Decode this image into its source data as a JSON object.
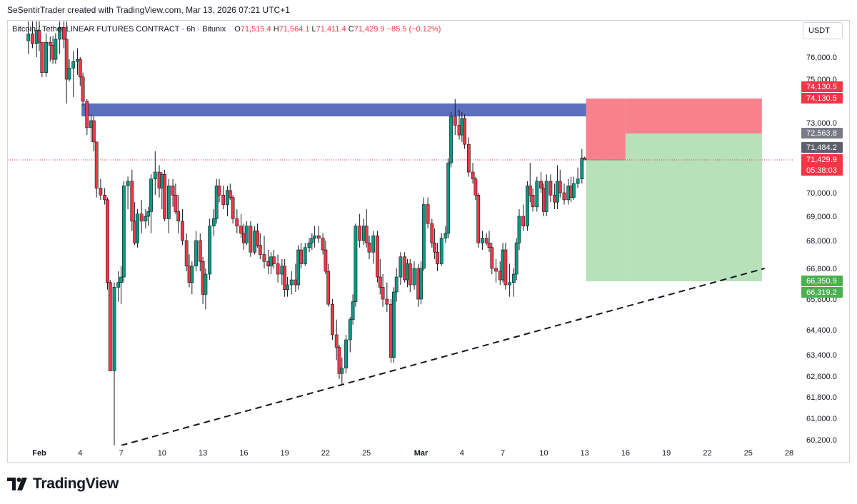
{
  "caption": "SeSentirTrader created with TradingView.com, Mar 13, 2026 07:21 UTC+1",
  "header": {
    "symbol": "Bitcoin / Tether LINEAR FUTURES CONTRACT · 6h · Bitunix",
    "open_label": "O",
    "open": "71,515.4",
    "high_label": "H",
    "high": "71,564.1",
    "low_label": "L",
    "low": "71,411.4",
    "close_label": "C",
    "close": "71,429.9",
    "change": "−85.5 (−0.12%)"
  },
  "currency": "USDT",
  "brand": {
    "name": "TradingView",
    "icon": "tradingview-logo-icon"
  },
  "colors": {
    "up": "#089981",
    "down": "#f23645",
    "resistance_zone": "#5b6fbe",
    "stop_zone": "#f7828e",
    "target_zone": "#b7e1b9",
    "trendline": "#131722",
    "price_line": "#f23645"
  },
  "chart_data": {
    "type": "candlestick",
    "interval": "6h",
    "ylim": [
      60000,
      77200
    ],
    "y_ticks": [
      {
        "label": "76,000.0",
        "value": 76000
      },
      {
        "label": "75,000.0",
        "value": 75000
      },
      {
        "label": "73,000.0",
        "value": 73000
      },
      {
        "label": "70,000.0",
        "value": 70000
      },
      {
        "label": "69,000.0",
        "value": 69000
      },
      {
        "label": "68,000.0",
        "value": 68000
      },
      {
        "label": "66,800.0",
        "value": 66800
      },
      {
        "label": "65,600.0",
        "value": 65600
      },
      {
        "label": "64,400.0",
        "value": 64400
      },
      {
        "label": "63,400.0",
        "value": 63400
      },
      {
        "label": "62,600.0",
        "value": 62600
      },
      {
        "label": "61,800.0",
        "value": 61800
      },
      {
        "label": "61,000.0",
        "value": 61000
      },
      {
        "label": "60,200.0",
        "value": 60200
      }
    ],
    "x_ticks": [
      {
        "label": "Feb",
        "day": 1,
        "bold": true
      },
      {
        "label": "4",
        "day": 4
      },
      {
        "label": "7",
        "day": 7
      },
      {
        "label": "10",
        "day": 10
      },
      {
        "label": "13",
        "day": 13
      },
      {
        "label": "16",
        "day": 16
      },
      {
        "label": "19",
        "day": 19
      },
      {
        "label": "22",
        "day": 22
      },
      {
        "label": "25",
        "day": 25
      },
      {
        "label": "Mar",
        "day": 29,
        "bold": true
      },
      {
        "label": "4",
        "day": 32
      },
      {
        "label": "7",
        "day": 35
      },
      {
        "label": "10",
        "day": 38
      },
      {
        "label": "13",
        "day": 41
      },
      {
        "label": "16",
        "day": 44
      },
      {
        "label": "19",
        "day": 47
      },
      {
        "label": "22",
        "day": 50
      },
      {
        "label": "25",
        "day": 53
      },
      {
        "label": "28",
        "day": 56
      }
    ],
    "price_tags": [
      {
        "label": "74,130.5",
        "value": 74130.5,
        "color": "#f23645"
      },
      {
        "label": "74,130.5",
        "value": 74130.5,
        "color": "#f23645",
        "offset": 1
      },
      {
        "label": "72,563.8",
        "value": 72563.8,
        "color": "#787b86"
      },
      {
        "label": "71,484.2",
        "value": 71484.2,
        "color": "#5d606b"
      },
      {
        "label": "71,429.9",
        "value": 71429.9,
        "color": "#f23645",
        "sub": "05:38:03"
      },
      {
        "label": "66,350.9",
        "value": 66350.9,
        "color": "#4caf50"
      },
      {
        "label": "66,319.2",
        "value": 66319.2,
        "color": "#4caf50",
        "offset": 1
      }
    ],
    "resistance_zone": {
      "day_start": 4.1,
      "day_end": 43.3,
      "price_low": 73300,
      "price_high": 73900
    },
    "position": {
      "entry_day": 41.1,
      "split_day": 44.0,
      "end_day": 54.0,
      "entry_price": 71429.9,
      "stop_price": 74130.5,
      "mid_price": 72563.8,
      "target_price": 66350.9
    },
    "trendline": {
      "day_start": 7.0,
      "price_start": 60000,
      "day_end": 54.2,
      "price_end": 66800
    },
    "candles_description": "Approximate 6h candles read off the chart",
    "candles": [
      [
        0.2,
        76550,
        77200,
        76100,
        76780
      ],
      [
        0.5,
        76780,
        77200,
        76300,
        76450
      ],
      [
        0.8,
        76450,
        77200,
        76000,
        76900
      ],
      [
        1.0,
        76900,
        77200,
        76200,
        76500
      ],
      [
        1.2,
        76500,
        76500,
        75100,
        75300
      ],
      [
        1.5,
        75300,
        76800,
        75100,
        76500
      ],
      [
        1.8,
        76500,
        76700,
        75800,
        76400
      ],
      [
        2.0,
        76400,
        76700,
        75700,
        75900
      ],
      [
        2.2,
        75900,
        76800,
        75700,
        76600
      ],
      [
        2.5,
        76600,
        77200,
        76100,
        77000
      ],
      [
        2.8,
        77000,
        77200,
        76300,
        76600
      ],
      [
        3.0,
        76600,
        77200,
        73900,
        75000
      ],
      [
        3.2,
        75000,
        75900,
        74900,
        75500
      ],
      [
        3.5,
        75500,
        76200,
        74200,
        75800
      ],
      [
        3.8,
        75800,
        76300,
        75200,
        75900
      ],
      [
        4.0,
        75900,
        76000,
        74700,
        75100
      ],
      [
        4.2,
        75100,
        75300,
        73800,
        74000
      ],
      [
        4.5,
        74000,
        74100,
        72500,
        72800
      ],
      [
        4.8,
        72800,
        73400,
        72200,
        73100
      ],
      [
        5.0,
        73100,
        73300,
        71800,
        72200
      ],
      [
        5.2,
        72200,
        72200,
        69800,
        70200
      ],
      [
        5.5,
        70200,
        70600,
        69700,
        69900
      ],
      [
        5.8,
        69900,
        70200,
        69500,
        69700
      ],
      [
        6.0,
        69700,
        69800,
        66000,
        66300
      ],
      [
        6.2,
        66300,
        66400,
        62800,
        62800
      ],
      [
        6.5,
        62800,
        66300,
        60000,
        66100
      ],
      [
        6.8,
        66100,
        66700,
        65500,
        66300
      ],
      [
        7.0,
        66300,
        66900,
        65400,
        66500
      ],
      [
        7.2,
        66500,
        70500,
        66300,
        70300
      ],
      [
        7.5,
        70300,
        70700,
        69300,
        70500
      ],
      [
        7.8,
        70500,
        71000,
        68400,
        68800
      ],
      [
        8.0,
        68800,
        69600,
        67800,
        67900
      ],
      [
        8.2,
        67900,
        69300,
        67700,
        69100
      ],
      [
        8.5,
        69100,
        69700,
        68300,
        68800
      ],
      [
        8.8,
        68800,
        69300,
        68500,
        69000
      ],
      [
        9.0,
        69000,
        69400,
        68600,
        69200
      ],
      [
        9.2,
        69200,
        70800,
        68300,
        70600
      ],
      [
        9.5,
        70600,
        71800,
        69900,
        70900
      ],
      [
        9.8,
        70900,
        71200,
        69800,
        70200
      ],
      [
        10.0,
        70200,
        70900,
        69300,
        70800
      ],
      [
        10.2,
        70800,
        71000,
        68800,
        68900
      ],
      [
        10.5,
        68900,
        70600,
        68300,
        70300
      ],
      [
        10.8,
        70300,
        70600,
        69400,
        69900
      ],
      [
        11.0,
        69900,
        70400,
        69100,
        69200
      ],
      [
        11.2,
        69200,
        69900,
        68300,
        68800
      ],
      [
        11.5,
        68800,
        69300,
        67800,
        68000
      ],
      [
        11.8,
        68000,
        68300,
        66700,
        66900
      ],
      [
        12.0,
        66900,
        67400,
        66100,
        66300
      ],
      [
        12.2,
        66300,
        67100,
        65800,
        66900
      ],
      [
        12.5,
        66900,
        68400,
        66700,
        68000
      ],
      [
        12.8,
        68000,
        68300,
        66700,
        67100
      ],
      [
        13.0,
        67100,
        67300,
        65400,
        65800
      ],
      [
        13.2,
        65800,
        66800,
        65200,
        66600
      ],
      [
        13.5,
        66600,
        68900,
        66400,
        68600
      ],
      [
        13.8,
        68600,
        69300,
        68200,
        68900
      ],
      [
        14.0,
        68900,
        70600,
        68700,
        70300
      ],
      [
        14.2,
        70300,
        70600,
        69600,
        69900
      ],
      [
        14.5,
        69900,
        70300,
        69300,
        69500
      ],
      [
        14.8,
        69500,
        70300,
        69000,
        70100
      ],
      [
        15.0,
        70100,
        70400,
        69700,
        69800
      ],
      [
        15.2,
        69800,
        69900,
        68700,
        68900
      ],
      [
        15.5,
        68900,
        69300,
        68300,
        68600
      ],
      [
        15.8,
        68600,
        69100,
        68100,
        68300
      ],
      [
        16.0,
        68300,
        68700,
        67600,
        67900
      ],
      [
        16.2,
        67900,
        68800,
        67800,
        68600
      ],
      [
        16.5,
        68600,
        68800,
        67300,
        67500
      ],
      [
        16.8,
        67500,
        68600,
        67400,
        68400
      ],
      [
        17.0,
        68400,
        68700,
        67700,
        67800
      ],
      [
        17.2,
        67800,
        68300,
        67200,
        67400
      ],
      [
        17.5,
        67400,
        68200,
        66800,
        67100
      ],
      [
        17.8,
        67100,
        67600,
        66600,
        66900
      ],
      [
        18.0,
        66900,
        67500,
        66600,
        67300
      ],
      [
        18.2,
        67300,
        67600,
        66800,
        67000
      ],
      [
        18.5,
        67000,
        67400,
        66300,
        66600
      ],
      [
        18.8,
        66600,
        67200,
        66200,
        66900
      ],
      [
        19.0,
        66900,
        67200,
        65700,
        66000
      ],
      [
        19.2,
        66000,
        66500,
        65700,
        66200
      ],
      [
        19.5,
        66200,
        66700,
        65800,
        66400
      ],
      [
        19.8,
        66400,
        67000,
        65900,
        66200
      ],
      [
        20.0,
        66200,
        67800,
        66000,
        67600
      ],
      [
        20.2,
        67600,
        67900,
        66800,
        67000
      ],
      [
        20.5,
        67000,
        67900,
        66900,
        67700
      ],
      [
        20.8,
        67700,
        68100,
        67500,
        67900
      ],
      [
        21.0,
        67900,
        68300,
        67600,
        68100
      ],
      [
        21.2,
        68100,
        68600,
        67700,
        68200
      ],
      [
        21.5,
        68200,
        68600,
        67900,
        68100
      ],
      [
        21.8,
        68100,
        68300,
        67400,
        67600
      ],
      [
        22.0,
        67600,
        68000,
        66600,
        66700
      ],
      [
        22.2,
        66700,
        67000,
        65300,
        65400
      ],
      [
        22.5,
        65400,
        65600,
        64000,
        64200
      ],
      [
        22.8,
        64200,
        64800,
        63200,
        63700
      ],
      [
        23.0,
        63700,
        63800,
        62500,
        62700
      ],
      [
        23.2,
        62700,
        63300,
        62300,
        62900
      ],
      [
        23.5,
        62900,
        64200,
        62700,
        64000
      ],
      [
        23.8,
        64000,
        64900,
        63500,
        64800
      ],
      [
        24.0,
        64800,
        65800,
        64600,
        65500
      ],
      [
        24.2,
        65500,
        68700,
        65300,
        68600
      ],
      [
        24.5,
        68600,
        69100,
        67700,
        68000
      ],
      [
        24.8,
        68000,
        68900,
        67800,
        68600
      ],
      [
        25.0,
        68600,
        69300,
        67700,
        67900
      ],
      [
        25.2,
        67900,
        68200,
        67200,
        67500
      ],
      [
        25.5,
        67500,
        68400,
        67000,
        68200
      ],
      [
        25.8,
        68200,
        68400,
        66300,
        66500
      ],
      [
        26.0,
        66500,
        67200,
        65800,
        66100
      ],
      [
        26.2,
        66100,
        66600,
        65300,
        65600
      ],
      [
        26.5,
        65600,
        66300,
        65100,
        65400
      ],
      [
        26.8,
        65400,
        65600,
        63100,
        63300
      ],
      [
        27.0,
        63300,
        66100,
        63100,
        65900
      ],
      [
        27.2,
        65900,
        66800,
        65500,
        66500
      ],
      [
        27.5,
        66500,
        67500,
        66200,
        67300
      ],
      [
        27.8,
        67300,
        67500,
        66300,
        66400
      ],
      [
        28.0,
        66400,
        67200,
        66100,
        67000
      ],
      [
        28.2,
        67000,
        67200,
        65900,
        66200
      ],
      [
        28.5,
        66200,
        67100,
        66000,
        66800
      ],
      [
        28.8,
        66800,
        67000,
        65300,
        65600
      ],
      [
        29.0,
        65600,
        67100,
        65400,
        66800
      ],
      [
        29.2,
        66800,
        69800,
        66700,
        69500
      ],
      [
        29.5,
        69500,
        69800,
        68500,
        68700
      ],
      [
        29.8,
        68700,
        68900,
        67700,
        67900
      ],
      [
        30.0,
        67900,
        68500,
        67200,
        67500
      ],
      [
        30.2,
        67500,
        67900,
        66700,
        67000
      ],
      [
        30.5,
        67000,
        68300,
        66900,
        68100
      ],
      [
        30.8,
        68100,
        68600,
        67900,
        68300
      ],
      [
        31.0,
        68300,
        71500,
        68100,
        71300
      ],
      [
        31.2,
        71300,
        73500,
        71100,
        73300
      ],
      [
        31.5,
        73300,
        74100,
        72500,
        72900
      ],
      [
        31.8,
        72900,
        73600,
        72300,
        72500
      ],
      [
        32.0,
        72500,
        73500,
        72200,
        73200
      ],
      [
        32.2,
        73200,
        73400,
        71900,
        72100
      ],
      [
        32.5,
        72100,
        72400,
        70700,
        70900
      ],
      [
        32.8,
        70900,
        71300,
        70400,
        70600
      ],
      [
        33.0,
        70600,
        70700,
        69700,
        69900
      ],
      [
        33.2,
        69900,
        70000,
        67700,
        67900
      ],
      [
        33.5,
        67900,
        68400,
        67600,
        68100
      ],
      [
        33.8,
        68100,
        68300,
        67800,
        67900
      ],
      [
        34.0,
        67900,
        68400,
        67500,
        67700
      ],
      [
        34.2,
        67700,
        67900,
        66600,
        66800
      ],
      [
        34.5,
        66800,
        67200,
        66300,
        66700
      ],
      [
        34.8,
        66700,
        67100,
        66200,
        66400
      ],
      [
        35.0,
        66400,
        67900,
        66300,
        67600
      ],
      [
        35.2,
        67600,
        67900,
        66000,
        66200
      ],
      [
        35.5,
        66200,
        67000,
        65700,
        66300
      ],
      [
        35.8,
        66300,
        66800,
        65700,
        66600
      ],
      [
        36.0,
        66600,
        68100,
        66400,
        67900
      ],
      [
        36.2,
        67900,
        69300,
        67600,
        69000
      ],
      [
        36.5,
        69000,
        69500,
        68400,
        68600
      ],
      [
        36.8,
        68600,
        70500,
        68400,
        70300
      ],
      [
        37.0,
        70300,
        71300,
        69600,
        69900
      ],
      [
        37.2,
        69900,
        70200,
        69200,
        69400
      ],
      [
        37.5,
        69400,
        70700,
        69200,
        70500
      ],
      [
        37.8,
        70500,
        70900,
        70000,
        70200
      ],
      [
        38.0,
        70200,
        70400,
        69000,
        69200
      ],
      [
        38.2,
        69200,
        70800,
        69000,
        70500
      ],
      [
        38.5,
        70500,
        70800,
        69600,
        69900
      ],
      [
        38.8,
        69900,
        70400,
        69300,
        69600
      ],
      [
        39.0,
        69600,
        71200,
        69300,
        70500
      ],
      [
        39.2,
        70500,
        71000,
        69800,
        70000
      ],
      [
        39.5,
        70000,
        70400,
        69500,
        69700
      ],
      [
        39.8,
        69700,
        70600,
        69500,
        70300
      ],
      [
        40.0,
        70300,
        70700,
        69600,
        69800
      ],
      [
        40.2,
        69800,
        70700,
        69700,
        70400
      ],
      [
        40.5,
        70400,
        71100,
        70200,
        70600
      ],
      [
        40.8,
        70600,
        71900,
        70400,
        71515
      ],
      [
        41.0,
        71515,
        71564,
        71411,
        71430
      ]
    ]
  }
}
